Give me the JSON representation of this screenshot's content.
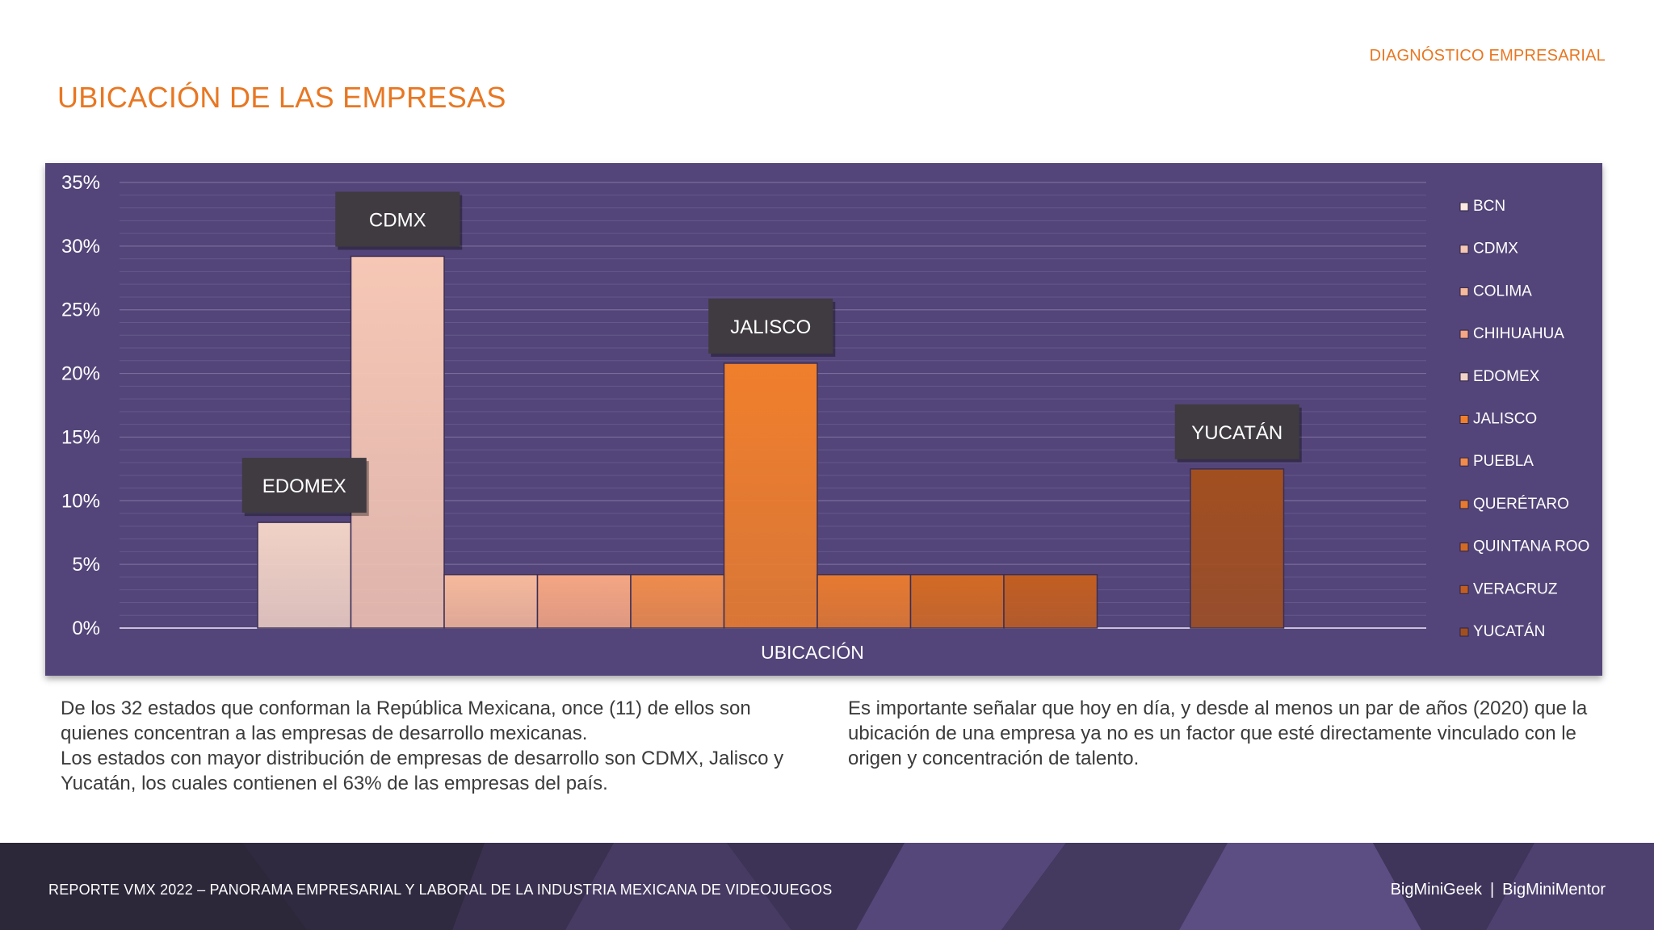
{
  "header": {
    "section_label": "DIAGNÓSTICO EMPRESARIAL"
  },
  "page": {
    "title": "UBICACIÓN DE LAS EMPRESAS"
  },
  "chart_data": {
    "type": "bar",
    "title": "",
    "xlabel": "UBICACIÓN",
    "ylabel": "",
    "ylim": [
      0,
      35
    ],
    "yticks": [
      "0%",
      "5%",
      "10%",
      "15%",
      "20%",
      "25%",
      "30%",
      "35%"
    ],
    "grid": true,
    "legend_position": "right",
    "series": [
      {
        "name": "BCN",
        "value": 0,
        "color": "#fbe9e1"
      },
      {
        "name": "CDMX",
        "value": 29.2,
        "color": "#f6c7b5"
      },
      {
        "name": "COLIMA",
        "value": 4.2,
        "color": "#f6b99c"
      },
      {
        "name": "CHIHUAHUA",
        "value": 4.2,
        "color": "#f5a683"
      },
      {
        "name": "EDOMEX",
        "value": 8.3,
        "color": "#f1d2c6"
      },
      {
        "name": "JALISCO",
        "value": 20.8,
        "color": "#f07f2c"
      },
      {
        "name": "PUEBLA",
        "value": 4.2,
        "color": "#ef8c4d"
      },
      {
        "name": "QUERÉTARO",
        "value": 4.2,
        "color": "#e77a30"
      },
      {
        "name": "QUINTANA ROO",
        "value": 4.2,
        "color": "#d36a24"
      },
      {
        "name": "VERACRUZ",
        "value": 4.2,
        "color": "#c25e21"
      },
      {
        "name": "YUCATÁN",
        "value": 12.5,
        "color": "#a24f20"
      }
    ],
    "bar_order": [
      "EDOMEX",
      "CDMX",
      "COLIMA",
      "CHIHUAHUA",
      "PUEBLA",
      "JALISCO",
      "QUERÉTARO",
      "QUINTANA ROO",
      "VERACRUZ",
      "BCN",
      "YUCATÁN"
    ],
    "annotations": [
      "CDMX",
      "EDOMEX",
      "JALISCO",
      "YUCATÁN"
    ]
  },
  "text": {
    "left_p1": "De los 32 estados que conforman la República Mexicana, once (11) de ellos son quienes concentran a las empresas de desarrollo mexicanas.",
    "left_p2": "Los estados con mayor distribución de empresas de desarrollo son CDMX, Jalisco y Yucatán, los cuales contienen el 63% de las empresas del país.",
    "right_p1": "Es importante señalar que hoy en día, y desde al menos un par de años (2020) que la ubicación de una empresa ya no es un factor que esté directamente vinculado con le origen y concentración de talento."
  },
  "footer": {
    "report": "REPORTE VMX 2022 – PANORAMA EMPRESARIAL Y LABORAL DE LA INDUSTRIA MEXICANA DE VIDEOJUEGOS",
    "brand_1": "BigMiniGeek",
    "separator": "|",
    "brand_2": "BigMiniMentor"
  }
}
